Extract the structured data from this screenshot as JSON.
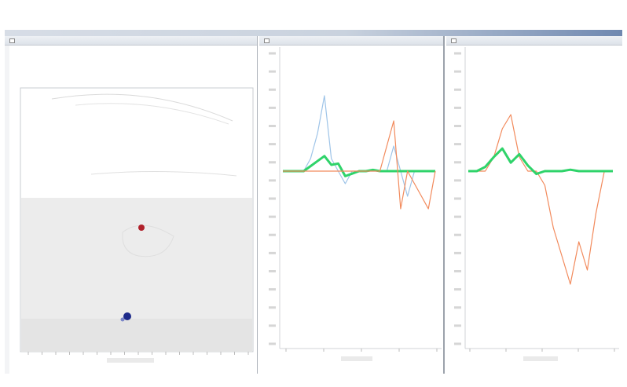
{
  "window": {
    "title": ""
  },
  "panels": {
    "left": {
      "title": "",
      "legend": [
        "",
        ""
      ]
    },
    "mid": {
      "title": "",
      "legend": [
        "",
        "",
        ""
      ]
    },
    "right": {
      "title": "",
      "legend": [
        "",
        "",
        ""
      ]
    }
  },
  "colors": {
    "blue_trace": "#9ec4e8",
    "green_trace": "#2fd36a",
    "orange_trace": "#f28a5c",
    "pink_trace": "#f2a6c8",
    "red_marker": "#b0202a",
    "blue_marker": "#1d2a8a",
    "shade": "#ececec"
  },
  "chart_data": [
    {
      "type": "scatter",
      "description_units": "unlabeled",
      "series": [
        {
          "points": [
            [
              0.52,
              0.26
            ],
            [
              0.45,
              0.03
            ]
          ]
        }
      ]
    },
    {
      "type": "line",
      "series": [
        {
          "values": [
            0,
            0,
            0,
            0,
            1,
            3,
            6,
            1,
            0,
            -1,
            0,
            0,
            0,
            0,
            0,
            0,
            2,
            0,
            -2,
            0,
            0,
            0,
            0
          ]
        },
        {
          "values": [
            0,
            0,
            0,
            0,
            0.4,
            0.8,
            1.2,
            0.5,
            0.6,
            -0.4,
            -0.2,
            0,
            0,
            0.1,
            0,
            0,
            0,
            0,
            0,
            0,
            0,
            0,
            0
          ]
        },
        {
          "values": [
            0,
            0,
            0,
            0,
            0,
            0,
            0,
            0,
            0,
            0,
            0,
            0,
            0,
            0,
            0,
            2,
            4,
            -3,
            0,
            -1,
            -2,
            -3,
            0
          ]
        }
      ]
    },
    {
      "type": "line",
      "series": [
        {
          "values": [
            0,
            0,
            0,
            1,
            3,
            4,
            1,
            0,
            0,
            -1,
            -4,
            -6,
            -8,
            -5,
            -7,
            -3,
            0,
            0
          ]
        },
        {
          "values": [
            0,
            0,
            0.3,
            1.0,
            1.6,
            0.6,
            1.2,
            0.4,
            -0.2,
            0,
            0,
            0,
            0.1,
            0,
            0,
            0,
            0,
            0
          ]
        }
      ]
    }
  ]
}
